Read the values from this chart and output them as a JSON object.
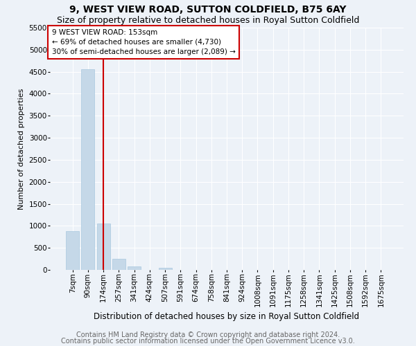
{
  "title1": "9, WEST VIEW ROAD, SUTTON COLDFIELD, B75 6AY",
  "title2": "Size of property relative to detached houses in Royal Sutton Coldfield",
  "xlabel": "Distribution of detached houses by size in Royal Sutton Coldfield",
  "ylabel": "Number of detached properties",
  "footnote1": "Contains HM Land Registry data © Crown copyright and database right 2024.",
  "footnote2": "Contains public sector information licensed under the Open Government Licence v3.0.",
  "categories": [
    "7sqm",
    "90sqm",
    "174sqm",
    "257sqm",
    "341sqm",
    "424sqm",
    "507sqm",
    "591sqm",
    "674sqm",
    "758sqm",
    "841sqm",
    "924sqm",
    "1008sqm",
    "1091sqm",
    "1175sqm",
    "1258sqm",
    "1341sqm",
    "1425sqm",
    "1508sqm",
    "1592sqm",
    "1675sqm"
  ],
  "values": [
    880,
    4560,
    1060,
    250,
    80,
    0,
    50,
    0,
    0,
    0,
    0,
    0,
    0,
    0,
    0,
    0,
    0,
    0,
    0,
    0,
    0
  ],
  "bar_color": "#c5d8e8",
  "bar_edge_color": "#a8c8df",
  "vline_x_index": 2,
  "vline_color": "#cc0000",
  "annotation_text": "9 WEST VIEW ROAD: 153sqm\n← 69% of detached houses are smaller (4,730)\n30% of semi-detached houses are larger (2,089) →",
  "annotation_box_facecolor": "#ffffff",
  "annotation_box_edgecolor": "#cc0000",
  "ylim": [
    0,
    5500
  ],
  "yticks": [
    0,
    500,
    1000,
    1500,
    2000,
    2500,
    3000,
    3500,
    4000,
    4500,
    5000,
    5500
  ],
  "background_color": "#edf2f8",
  "grid_color": "#ffffff",
  "title1_fontsize": 10,
  "title2_fontsize": 9,
  "xlabel_fontsize": 8.5,
  "ylabel_fontsize": 8,
  "tick_fontsize": 7.5,
  "footnote_fontsize": 7,
  "annotation_fontsize": 7.5
}
